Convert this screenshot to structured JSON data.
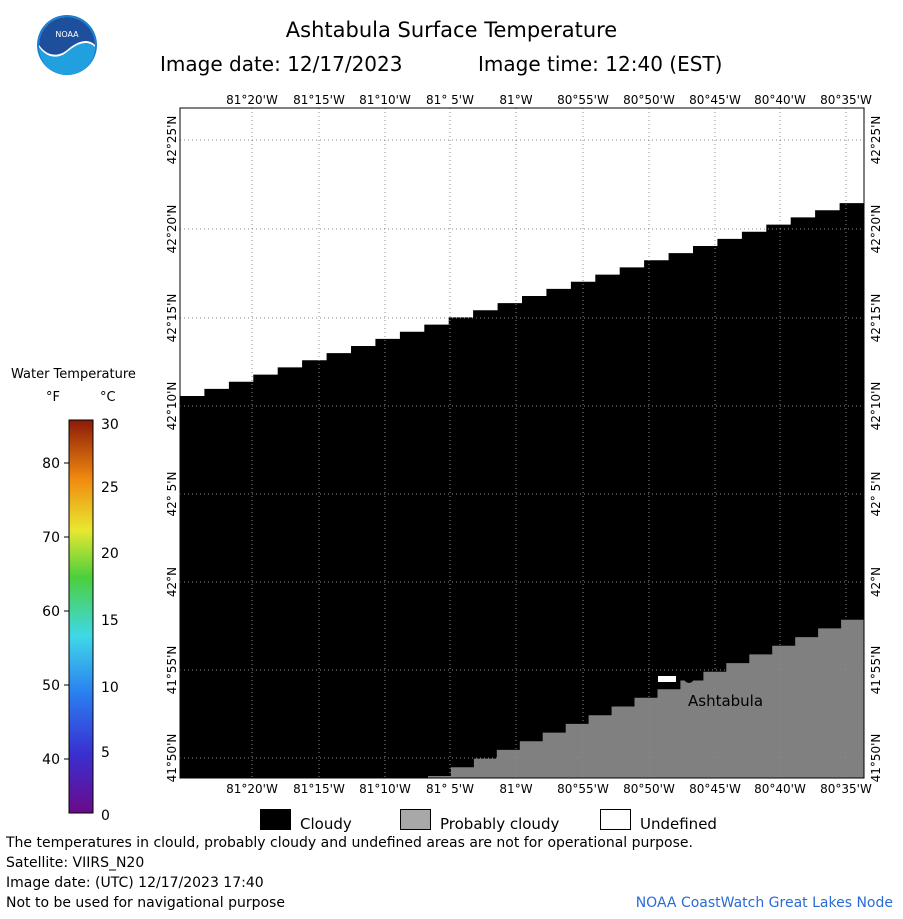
{
  "header": {
    "title": "Ashtabula Surface Temperature",
    "image_date": "Image date: 12/17/2023",
    "image_time": "Image time: 12:40 (EST)",
    "logo_text": "NOAA"
  },
  "map": {
    "lon_labels": [
      "81°20'W",
      "81°15'W",
      "81°10'W",
      "81° 5'W",
      "81°W",
      "80°55'W",
      "80°50'W",
      "80°45'W",
      "80°40'W",
      "80°35'W"
    ],
    "lat_labels": [
      "42°25'N",
      "42°20'N",
      "42°15'N",
      "42°10'N",
      "42° 5'N",
      "42°N",
      "41°55'N",
      "41°50'N"
    ],
    "place_label": "Ashtabula",
    "colors": {
      "cloudy": "#000000",
      "probably_cloudy": "#808080",
      "undefined": "#ffffff",
      "grid": "#8a8a8a"
    }
  },
  "legend": {
    "title": "Water Temperature",
    "unit_f": "°F",
    "unit_c": "°C",
    "f_ticks": [
      "80",
      "70",
      "60",
      "50",
      "40"
    ],
    "c_ticks": [
      "30",
      "25",
      "20",
      "15",
      "10",
      "5",
      "0"
    ]
  },
  "key": {
    "cloudy": "Cloudy",
    "probably_cloudy": "Probably cloudy",
    "undefined": "Undefined"
  },
  "footer": {
    "disclaimer": "The temperatures in clould, probably cloudy and undefined areas are not for operational purpose.",
    "satellite": "Satellite: VIIRS_N20",
    "utc_date": "Image date: (UTC) 12/17/2023  17:40",
    "navigation": "Not to be used for navigational purpose",
    "credit": "NOAA CoastWatch Great Lakes Node"
  }
}
